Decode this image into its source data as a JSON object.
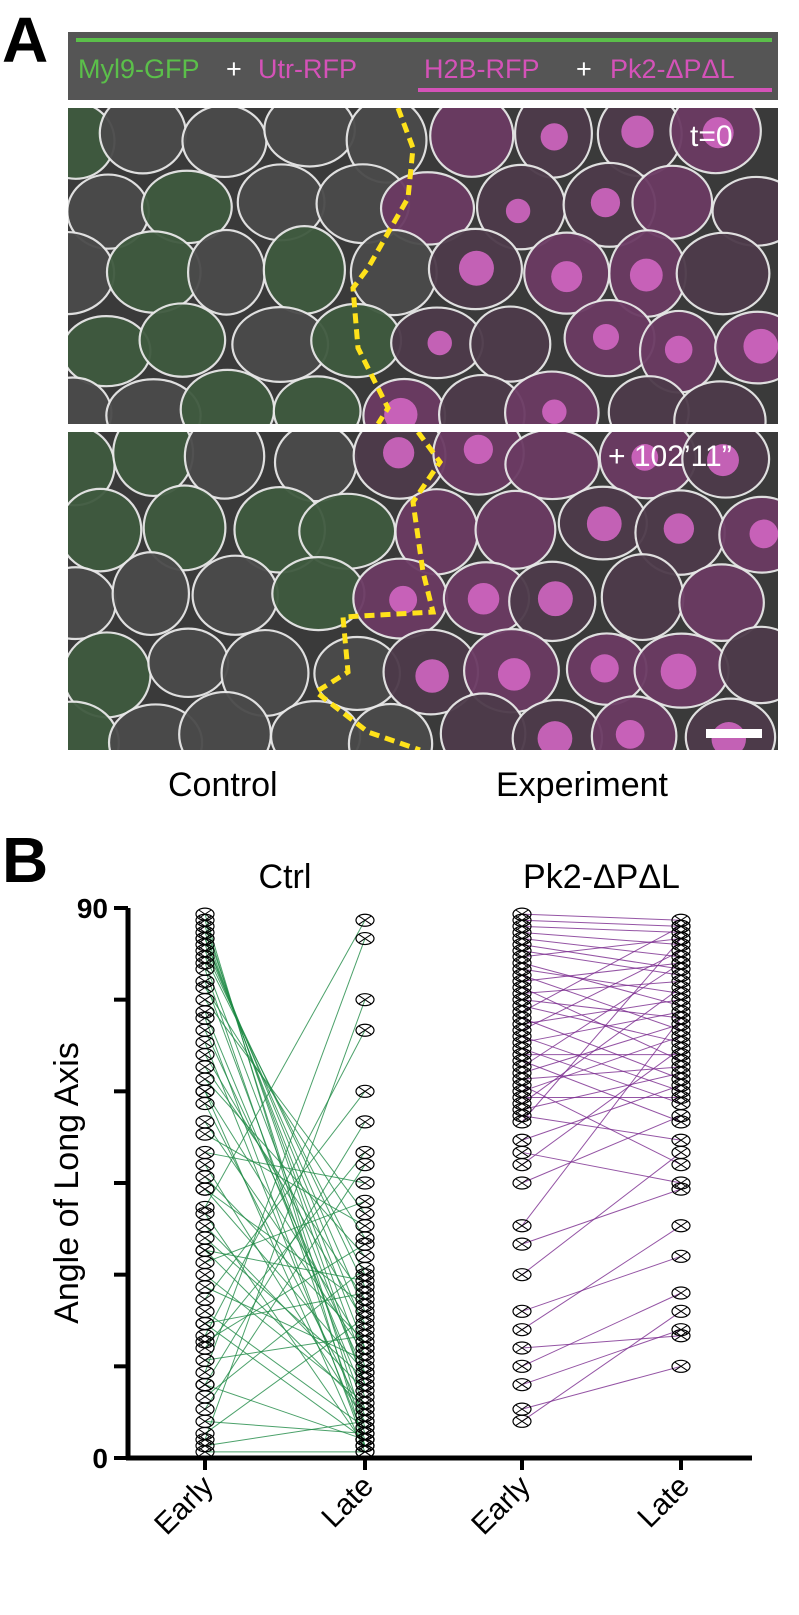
{
  "panel_a": {
    "letter": "A",
    "legend": {
      "part1": "Myl9-GFP",
      "plus1": "+",
      "part2": "Utr-RFP",
      "part3": "H2B-RFP",
      "plus2": "+",
      "part4": "Pk2-ΔPΔL"
    },
    "time_top": "t=0",
    "time_bottom": "+ 102’11”",
    "control_label": "Control",
    "experiment_label": "Experiment",
    "colors": {
      "green": "#5bbf4a",
      "magenta": "#d452b8",
      "dashed": "#ffe21a"
    }
  },
  "panel_b": {
    "letter": "B"
  },
  "chart_data": {
    "type": "line",
    "ylabel": "Angle of Long Axis",
    "ylim": [
      0,
      90
    ],
    "yticks": [
      0,
      15,
      30,
      45,
      60,
      75,
      90
    ],
    "ytick_labels": [
      "0",
      "",
      "",
      "",
      "",
      "",
      "90"
    ],
    "x_tick_labels": [
      "Early",
      "Late",
      "Early",
      "Late"
    ],
    "groups": [
      {
        "title": "Ctrl",
        "color": "#1f8a45",
        "early": [
          89,
          88,
          87,
          86,
          85,
          85,
          84,
          83,
          82,
          80,
          78,
          77,
          75,
          73,
          70,
          68,
          66,
          64,
          62,
          60,
          58,
          55,
          53,
          50,
          48,
          46,
          44,
          41,
          40,
          38,
          36,
          34,
          32,
          30,
          28,
          26,
          24,
          22,
          20,
          19,
          18,
          16,
          14,
          12,
          10,
          8,
          6,
          4,
          3,
          2,
          1,
          44,
          22,
          34,
          60,
          72,
          81,
          12
        ],
        "late": [
          2,
          5,
          12,
          15,
          18,
          21,
          24,
          28,
          30,
          4,
          8,
          36,
          40,
          10,
          14,
          3,
          22,
          26,
          33,
          1,
          7,
          17,
          38,
          45,
          6,
          19,
          25,
          88,
          2,
          11,
          13,
          29,
          42,
          9,
          16,
          60,
          5,
          27,
          70,
          35,
          50,
          20,
          85,
          3,
          31,
          48,
          4,
          23,
          75,
          6,
          1,
          14,
          3,
          8,
          18,
          2,
          12,
          55
        ]
      },
      {
        "title": "Pk2-ΔPΔL",
        "color": "#7a2a8e",
        "early": [
          89,
          88,
          87,
          86,
          85,
          84,
          83,
          82,
          81,
          80,
          79,
          78,
          77,
          76,
          75,
          74,
          73,
          72,
          71,
          70,
          69,
          68,
          67,
          66,
          65,
          64,
          63,
          62,
          61,
          60,
          59,
          58,
          57,
          56,
          55,
          52,
          50,
          48,
          45,
          38,
          35,
          30,
          24,
          21,
          18,
          15,
          12,
          8,
          6
        ],
        "late": [
          88,
          87,
          86,
          84,
          82,
          80,
          79,
          85,
          74,
          76,
          70,
          81,
          65,
          78,
          72,
          68,
          87,
          62,
          75,
          83,
          60,
          73,
          58,
          66,
          55,
          81,
          71,
          64,
          48,
          69,
          59,
          77,
          63,
          52,
          85,
          61,
          45,
          67,
          56,
          72,
          44,
          50,
          33,
          38,
          20,
          27,
          21,
          15,
          24
        ]
      }
    ]
  }
}
